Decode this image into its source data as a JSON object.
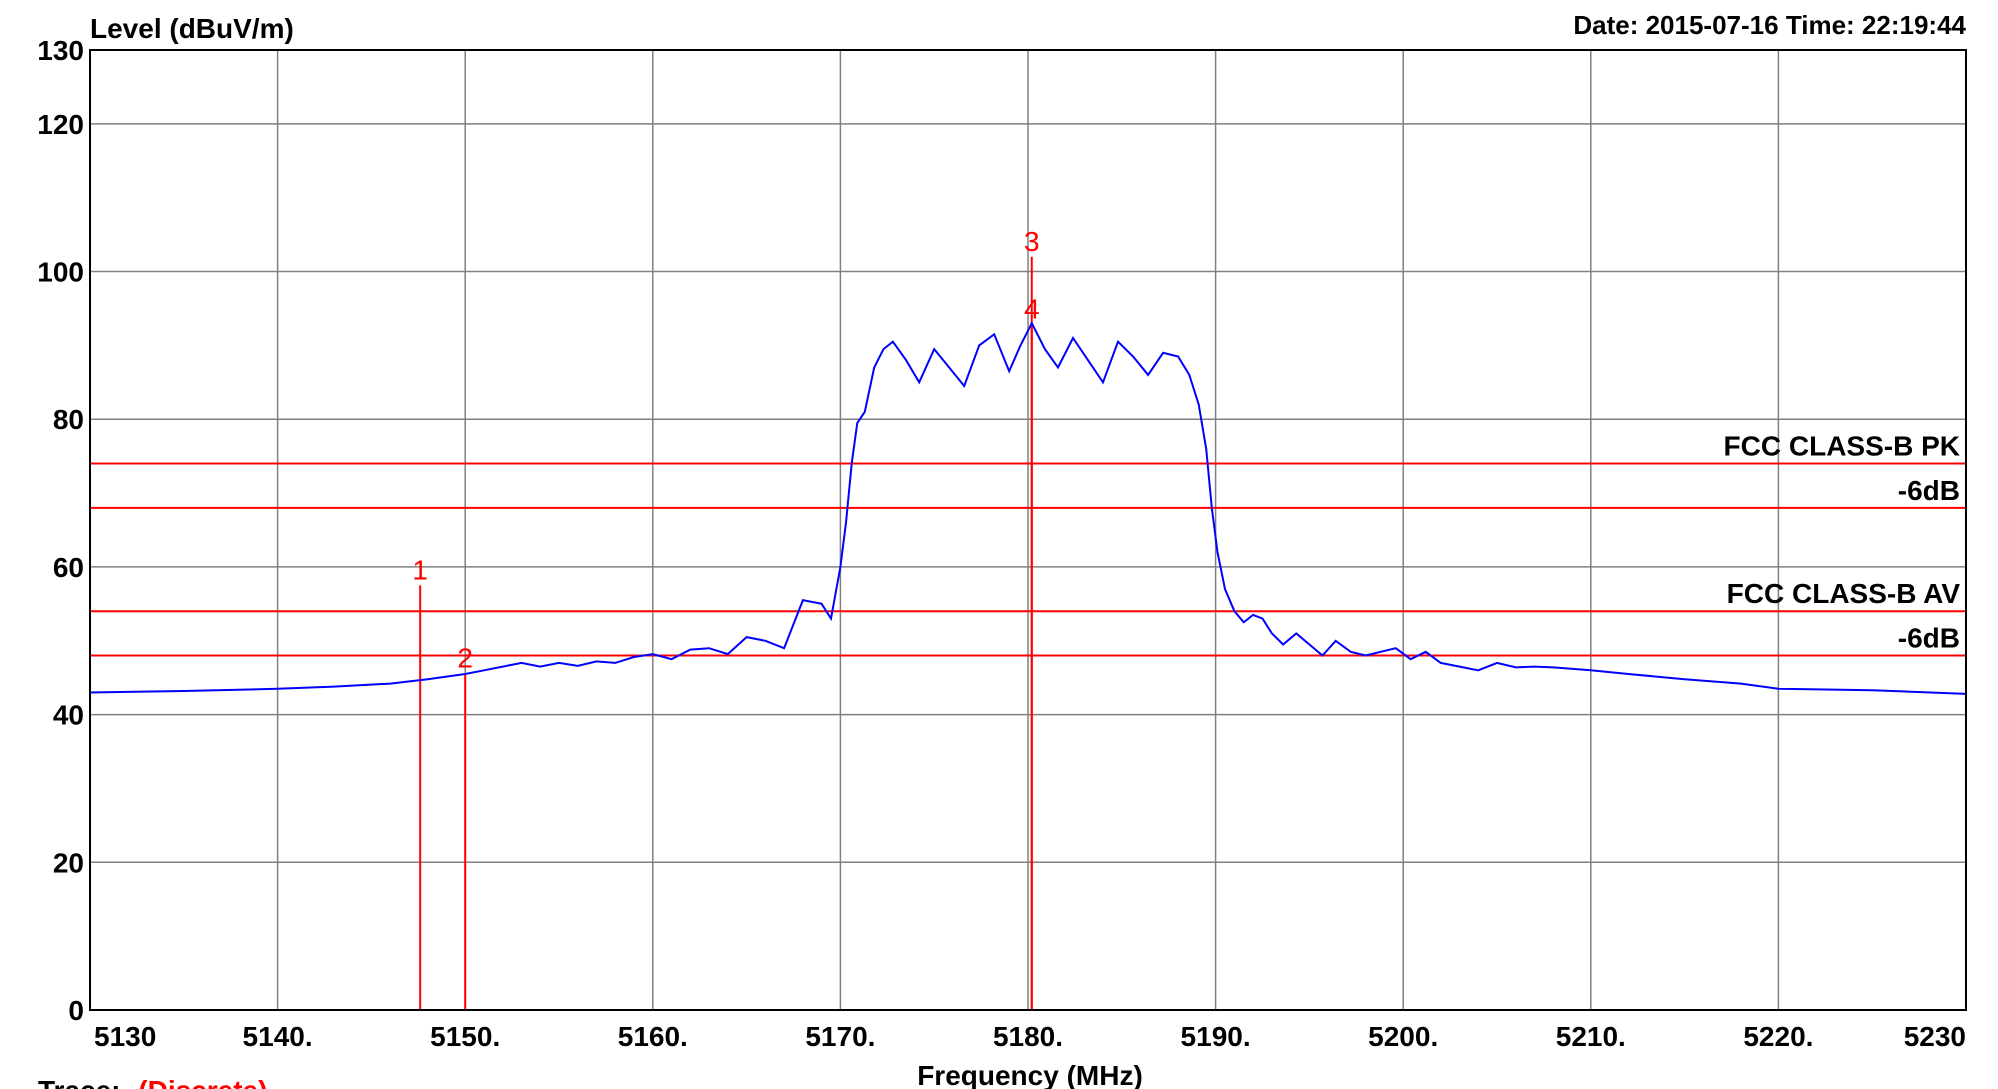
{
  "header": {
    "date_time": "Date: 2015-07-16  Time: 22:19:44"
  },
  "footer": {
    "trace_label": "Trace:",
    "trace_value": "(Discrete)"
  },
  "colors": {
    "trace": "#0000ff",
    "limit": "#ff0000",
    "grid": "#808080",
    "axis": "#000000"
  },
  "chart_data": {
    "type": "line",
    "xlabel": "Frequency (MHz)",
    "ylabel": "Level (dBuV/m)",
    "xlim": [
      5130,
      5230
    ],
    "ylim": [
      0,
      130
    ],
    "x_ticks": [
      {
        "value": 5130,
        "label": "5130"
      },
      {
        "value": 5140,
        "label": "5140."
      },
      {
        "value": 5150,
        "label": "5150."
      },
      {
        "value": 5160,
        "label": "5160."
      },
      {
        "value": 5170,
        "label": "5170."
      },
      {
        "value": 5180,
        "label": "5180."
      },
      {
        "value": 5190,
        "label": "5190."
      },
      {
        "value": 5200,
        "label": "5200."
      },
      {
        "value": 5210,
        "label": "5210."
      },
      {
        "value": 5220,
        "label": "5220."
      },
      {
        "value": 5230,
        "label": "5230"
      }
    ],
    "y_ticks": [
      {
        "value": 0,
        "label": "0"
      },
      {
        "value": 20,
        "label": "20"
      },
      {
        "value": 40,
        "label": "40"
      },
      {
        "value": 60,
        "label": "60"
      },
      {
        "value": 80,
        "label": "80"
      },
      {
        "value": 100,
        "label": "100"
      },
      {
        "value": 120,
        "label": "120"
      },
      {
        "value": 130,
        "label": "130"
      }
    ],
    "y_gridlines": [
      0,
      20,
      40,
      60,
      80,
      100,
      120,
      130
    ],
    "grid": true,
    "limit_lines": [
      {
        "name": "FCC CLASS-B PK",
        "value": 74
      },
      {
        "name": "-6dB",
        "value": 68
      },
      {
        "name": "FCC CLASS-B AV",
        "value": 54
      },
      {
        "name": "-6dB",
        "value": 48
      }
    ],
    "markers": [
      {
        "label": "1",
        "x": 5147.6,
        "y": 57.5
      },
      {
        "label": "2",
        "x": 5150.0,
        "y": 45.6
      },
      {
        "label": "3",
        "x": 5180.2,
        "y": 102.0
      },
      {
        "label": "4",
        "x": 5180.2,
        "y": 92.8
      }
    ],
    "series": [
      {
        "x": [
          5130,
          5135,
          5140,
          5143,
          5146,
          5148,
          5150,
          5151,
          5152,
          5153,
          5154,
          5155,
          5156,
          5157,
          5158,
          5159,
          5160,
          5161,
          5162,
          5163,
          5164,
          5165,
          5166,
          5167,
          5168,
          5169,
          5169.5,
          5170,
          5170.3,
          5170.6,
          5170.9,
          5171.3,
          5171.8,
          5172.3,
          5172.8,
          5173.5,
          5174.2,
          5175,
          5175.8,
          5176.6,
          5177.4,
          5178.2,
          5179,
          5179.6,
          5180.2,
          5180.9,
          5181.6,
          5182.4,
          5183.2,
          5184,
          5184.8,
          5185.6,
          5186.4,
          5187.2,
          5188,
          5188.6,
          5189.1,
          5189.5,
          5189.8,
          5190.1,
          5190.5,
          5191,
          5191.5,
          5192,
          5192.5,
          5193,
          5193.6,
          5194.3,
          5195,
          5195.7,
          5196.4,
          5197.2,
          5198,
          5198.8,
          5199.6,
          5200.4,
          5201.2,
          5202,
          5203,
          5204,
          5205,
          5206,
          5207,
          5208,
          5210,
          5212,
          5215,
          5218,
          5220,
          5225,
          5230
        ],
        "y": [
          43,
          43.2,
          43.5,
          43.8,
          44.2,
          44.8,
          45.5,
          46,
          46.5,
          47,
          46.5,
          47,
          46.6,
          47.2,
          47,
          47.8,
          48.2,
          47.5,
          48.8,
          49,
          48.2,
          50.5,
          50,
          49,
          55.5,
          55,
          53,
          60,
          66,
          74,
          79.5,
          81,
          87,
          89.5,
          90.5,
          88,
          85,
          89.5,
          87,
          84.5,
          90,
          91.5,
          86.5,
          90,
          93,
          89.5,
          87,
          91,
          88,
          85,
          90.5,
          88.5,
          86,
          89,
          88.5,
          86,
          82,
          76,
          68,
          62,
          57,
          54,
          52.5,
          53.5,
          53,
          51,
          49.5,
          51,
          49.5,
          48,
          50,
          48.5,
          48,
          48.5,
          49,
          47.5,
          48.5,
          47,
          46.5,
          46,
          47,
          46.4,
          46.5,
          46.4,
          46,
          45.5,
          44.8,
          44.2,
          43.5,
          43.3,
          42.8
        ]
      }
    ]
  }
}
